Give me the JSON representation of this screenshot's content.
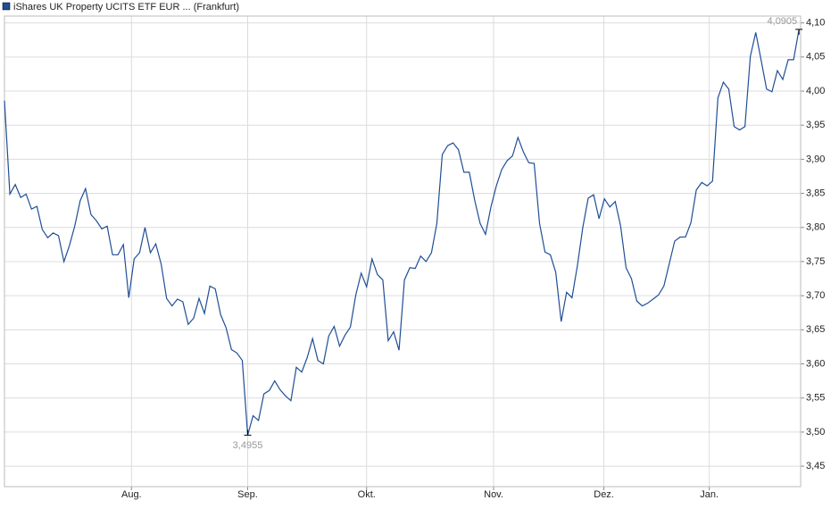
{
  "chart_data": {
    "type": "line",
    "title": "iShares UK Property UCITS ETF EUR ... (Frankfurt)",
    "series": [
      {
        "name": "iShares UK Property UCITS ETF EUR ... (Frankfurt)",
        "color": "#1f4e96",
        "values": [
          3.986,
          3.849,
          3.863,
          3.844,
          3.849,
          3.827,
          3.831,
          3.797,
          3.785,
          3.792,
          3.788,
          3.75,
          3.773,
          3.802,
          3.839,
          3.857,
          3.819,
          3.81,
          3.798,
          3.802,
          3.76,
          3.76,
          3.775,
          3.697,
          3.754,
          3.763,
          3.8,
          3.763,
          3.776,
          3.746,
          3.696,
          3.685,
          3.695,
          3.691,
          3.658,
          3.667,
          3.696,
          3.674,
          3.714,
          3.71,
          3.672,
          3.653,
          3.621,
          3.616,
          3.605,
          3.4955,
          3.524,
          3.517,
          3.556,
          3.561,
          3.575,
          3.562,
          3.553,
          3.546,
          3.595,
          3.588,
          3.609,
          3.637,
          3.605,
          3.6,
          3.641,
          3.655,
          3.626,
          3.642,
          3.654,
          3.701,
          3.733,
          3.713,
          3.754,
          3.731,
          3.723,
          3.634,
          3.647,
          3.62,
          3.723,
          3.741,
          3.74,
          3.758,
          3.75,
          3.763,
          3.806,
          3.907,
          3.92,
          3.924,
          3.914,
          3.881,
          3.881,
          3.84,
          3.806,
          3.79,
          3.83,
          3.861,
          3.885,
          3.898,
          3.905,
          3.932,
          3.911,
          3.895,
          3.894,
          3.806,
          3.764,
          3.76,
          3.734,
          3.662,
          3.705,
          3.697,
          3.744,
          3.8,
          3.843,
          3.848,
          3.813,
          3.842,
          3.83,
          3.838,
          3.802,
          3.741,
          3.725,
          3.692,
          3.685,
          3.689,
          3.695,
          3.701,
          3.714,
          3.747,
          3.78,
          3.786,
          3.786,
          3.807,
          3.855,
          3.866,
          3.861,
          3.868,
          3.99,
          4.013,
          4.003,
          3.948,
          3.943,
          3.948,
          4.051,
          4.086,
          4.045,
          4.003,
          3.999,
          4.03,
          4.017,
          4.046,
          4.046,
          4.0905
        ]
      }
    ],
    "xlim": [
      0,
      147.3
    ],
    "xticks": [
      {
        "value": 23.5,
        "label": "Aug."
      },
      {
        "value": 45,
        "label": "Sep."
      },
      {
        "value": 67,
        "label": "Okt."
      },
      {
        "value": 90.5,
        "label": "Nov."
      },
      {
        "value": 110.9,
        "label": "Dez."
      },
      {
        "value": 130.4,
        "label": "Jan."
      }
    ],
    "ylim": [
      3.42,
      4.11
    ],
    "yticks": [
      {
        "value": 3.45,
        "label": "3,45"
      },
      {
        "value": 3.5,
        "label": "3,50"
      },
      {
        "value": 3.55,
        "label": "3,55"
      },
      {
        "value": 3.6,
        "label": "3,60"
      },
      {
        "value": 3.65,
        "label": "3,65"
      },
      {
        "value": 3.7,
        "label": "3,70"
      },
      {
        "value": 3.75,
        "label": "3,75"
      },
      {
        "value": 3.8,
        "label": "3,80"
      },
      {
        "value": 3.85,
        "label": "3,85"
      },
      {
        "value": 3.9,
        "label": "3,90"
      },
      {
        "value": 3.95,
        "label": "3,95"
      },
      {
        "value": 4.0,
        "label": "4,00"
      },
      {
        "value": 4.05,
        "label": "4,05"
      },
      {
        "value": 4.1,
        "label": "4,10"
      }
    ],
    "annotations": [
      {
        "value": 4.0905,
        "label": "4,0905"
      },
      {
        "value": 3.4955,
        "label": "3,4955"
      }
    ],
    "grid": true
  }
}
